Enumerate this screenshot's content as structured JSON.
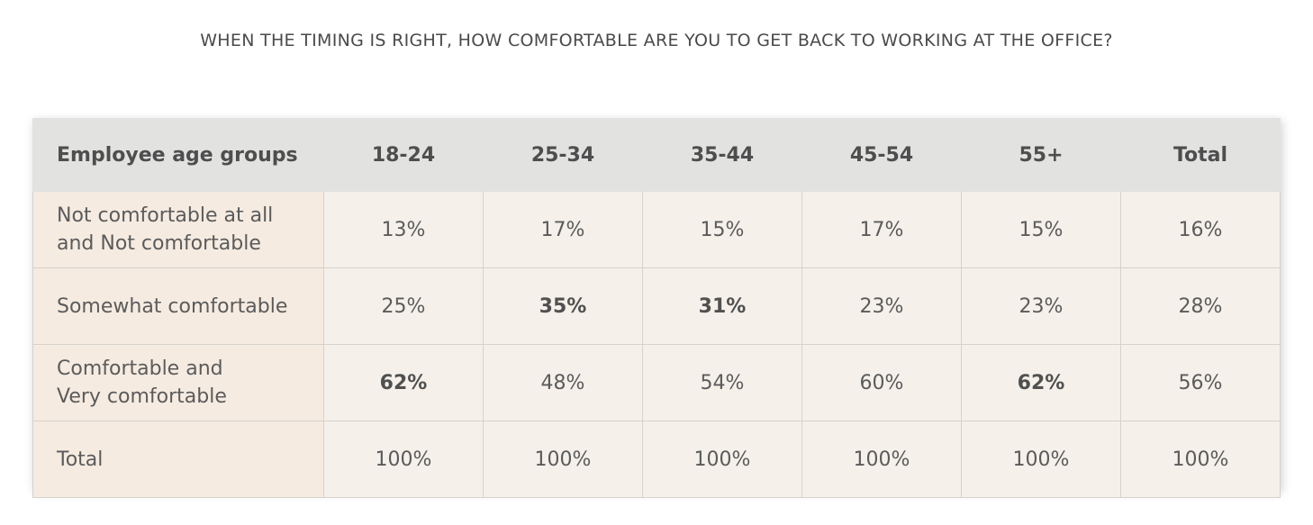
{
  "title": "WHEN THE TIMING IS RIGHT, HOW COMFORTABLE ARE YOU TO GET BACK TO WORKING AT THE OFFICE?",
  "chart_data": {
    "type": "table",
    "title": "WHEN THE TIMING IS RIGHT, HOW COMFORTABLE ARE YOU TO GET BACK TO WORKING AT THE OFFICE?",
    "header": [
      "Employee age groups",
      "18-24",
      "25-34",
      "35-44",
      "45-54",
      "55+",
      "Total"
    ],
    "rows": [
      {
        "label_lines": [
          "Not comfortable at all",
          "and Not comfortable"
        ],
        "values": [
          "13%",
          "17%",
          "15%",
          "17%",
          "15%",
          "16%"
        ],
        "bold": [
          false,
          false,
          false,
          false,
          false,
          false
        ]
      },
      {
        "label_lines": [
          "Somewhat comfortable"
        ],
        "values": [
          "25%",
          "35%",
          "31%",
          "23%",
          "23%",
          "28%"
        ],
        "bold": [
          false,
          true,
          true,
          false,
          false,
          false
        ]
      },
      {
        "label_lines": [
          "Comfortable and",
          "Very comfortable"
        ],
        "values": [
          "62%",
          "48%",
          "54%",
          "60%",
          "62%",
          "56%"
        ],
        "bold": [
          true,
          false,
          false,
          false,
          true,
          false
        ]
      },
      {
        "label_lines": [
          "Total"
        ],
        "values": [
          "100%",
          "100%",
          "100%",
          "100%",
          "100%",
          "100%"
        ],
        "bold": [
          false,
          false,
          false,
          false,
          false,
          false
        ]
      }
    ]
  },
  "colors": {
    "header_bg": "#e2e2e1",
    "label_bg": "#f5ebe1",
    "cell_bg": "#f5f0ea",
    "border": "#d6d2cc",
    "text": "#5b5b5b"
  }
}
